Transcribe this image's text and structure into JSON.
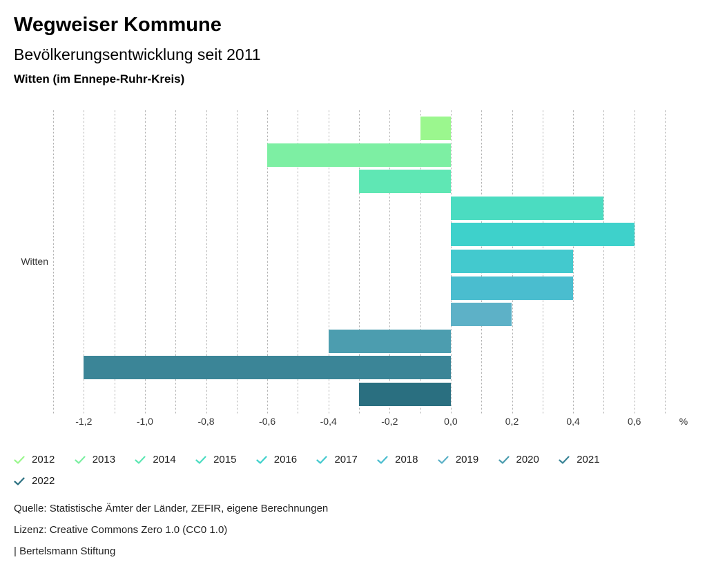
{
  "header": {
    "title": "Wegweiser Kommune",
    "subtitle": "Bevölkerungsentwicklung seit 2011",
    "region": "Witten (im Ennepe-Ruhr-Kreis)"
  },
  "chart_data": {
    "type": "bar",
    "orientation": "horizontal",
    "group_label": "Witten",
    "unit": "%",
    "xlim": [
      -1.3,
      0.7
    ],
    "gridline_step": 0.1,
    "grid": "dashed vertical",
    "x_tick_values": [
      -1.2,
      -1.0,
      -0.8,
      -0.6,
      -0.4,
      -0.2,
      0.0,
      0.2,
      0.4,
      0.6
    ],
    "x_tick_labels": [
      "-1,2",
      "-1,0",
      "-0,8",
      "-0,6",
      "-0,4",
      "-0,2",
      "0,0",
      "0,2",
      "0,4",
      "0,6"
    ],
    "categories": [
      "2012",
      "2013",
      "2014",
      "2015",
      "2016",
      "2017",
      "2018",
      "2019",
      "2020",
      "2021",
      "2022"
    ],
    "values": [
      -0.1,
      -0.6,
      -0.3,
      0.5,
      0.6,
      0.4,
      0.4,
      0.2,
      -0.4,
      -1.2,
      -0.3
    ],
    "series": [
      {
        "name": "2012",
        "value": -0.1,
        "color": "#9BF78E"
      },
      {
        "name": "2013",
        "value": -0.6,
        "color": "#7DEFA3"
      },
      {
        "name": "2014",
        "value": -0.3,
        "color": "#5FE7B4"
      },
      {
        "name": "2015",
        "value": 0.5,
        "color": "#4BDCC1"
      },
      {
        "name": "2016",
        "value": 0.6,
        "color": "#3ED1CB"
      },
      {
        "name": "2017",
        "value": 0.4,
        "color": "#43C9CE"
      },
      {
        "name": "2018",
        "value": 0.4,
        "color": "#4ABDCF"
      },
      {
        "name": "2019",
        "value": 0.2,
        "color": "#5DB1C7"
      },
      {
        "name": "2020",
        "value": -0.4,
        "color": "#4C9DAF"
      },
      {
        "name": "2021",
        "value": -1.2,
        "color": "#3B8597"
      },
      {
        "name": "2022",
        "value": -0.3,
        "color": "#2A6F80"
      }
    ],
    "legend_position": "bottom"
  },
  "footer": {
    "source": "Quelle: Statistische Ämter der Länder, ZEFIR, eigene Berechnungen",
    "license": "Lizenz: Creative Commons Zero 1.0 (CC0 1.0)",
    "attribution": "| Bertelsmann Stiftung"
  }
}
